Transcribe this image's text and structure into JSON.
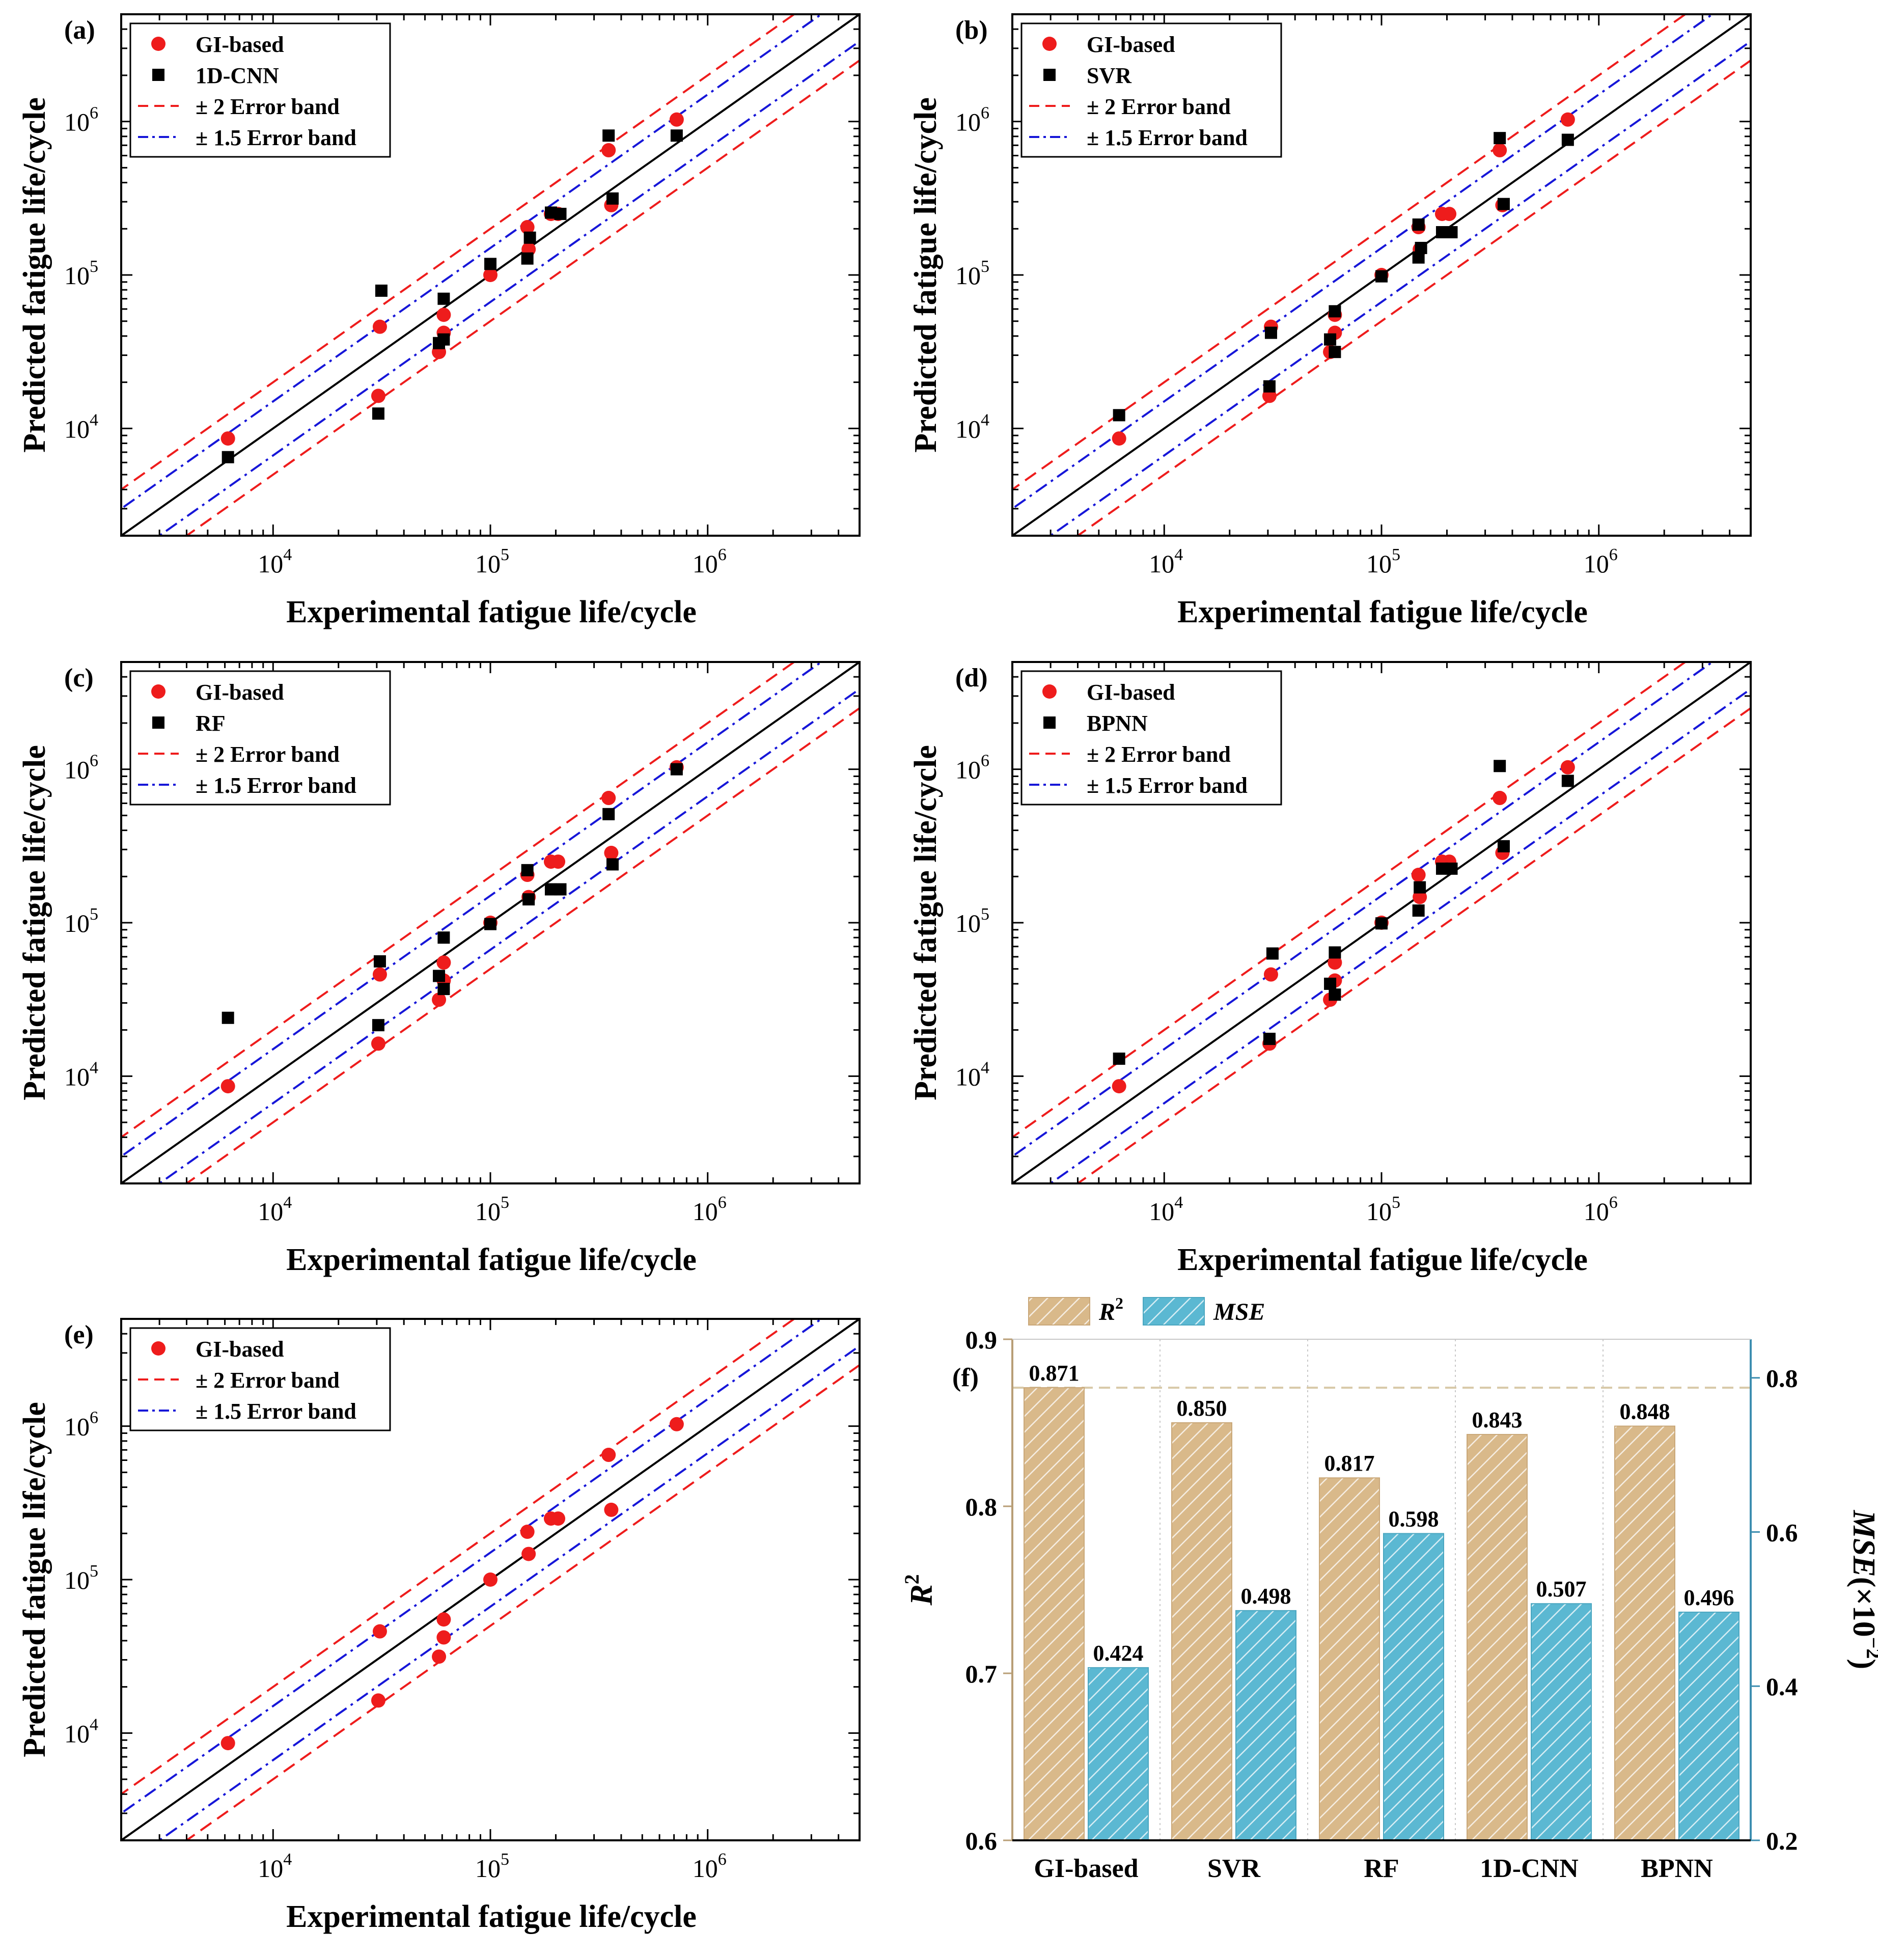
{
  "colors": {
    "ours": "#ee1c1c",
    "baseline": "#000000",
    "band2": "#ee1c1c",
    "band15": "#1616d8",
    "r2_bar": "#d9b98a",
    "mse_bar": "#5bb8d2",
    "mse_axis": "#3d8eb0"
  },
  "chart_data": [
    {
      "type": "scatter",
      "panel_label": "(a)",
      "xlabel": "Experimental fatigue life/cycle",
      "ylabel": "Predicted fatigue life/cycle",
      "xscale": "log",
      "yscale": "log",
      "xlim": [
        2000,
        5000000
      ],
      "ylim": [
        2000,
        5000000
      ],
      "xticks": [
        "10^4",
        "10^5",
        "10^6"
      ],
      "yticks": [
        "10^4",
        "10^5",
        "10^6"
      ],
      "legend": {
        "position": "top-left",
        "entries": [
          "GI-based",
          "1D-CNN",
          "± 2 Error band",
          "± 1.5 Error band"
        ]
      },
      "series": [
        {
          "name": "GI-based",
          "marker": "circle",
          "points": [
            [
              6200,
              8600
            ],
            [
              31000,
              46000
            ],
            [
              30500,
              16300
            ],
            [
              58000,
              31500
            ],
            [
              61000,
              42000
            ],
            [
              61000,
              55000
            ],
            [
              100000,
              100000
            ],
            [
              148000,
              205000
            ],
            [
              150000,
              147000
            ],
            [
              190000,
              250000
            ],
            [
              205000,
              250000
            ],
            [
              350000,
              650000
            ],
            [
              360000,
              285000
            ],
            [
              720000,
              1030000
            ]
          ]
        },
        {
          "name": "1D-CNN",
          "marker": "square",
          "points": [
            [
              6200,
              6500
            ],
            [
              31500,
              79000
            ],
            [
              30500,
              12500
            ],
            [
              58000,
              36000
            ],
            [
              61000,
              38000
            ],
            [
              61000,
              70000
            ],
            [
              100000,
              118000
            ],
            [
              148000,
              128000
            ],
            [
              152000,
              175000
            ],
            [
              190000,
              255000
            ],
            [
              210000,
              250000
            ],
            [
              350000,
              810000
            ],
            [
              365000,
              315000
            ],
            [
              720000,
              810000
            ]
          ]
        }
      ]
    },
    {
      "type": "scatter",
      "panel_label": "(b)",
      "xlabel": "Experimental fatigue life/cycle",
      "ylabel": "Predicted fatigue life/cycle",
      "xscale": "log",
      "yscale": "log",
      "xlim": [
        2000,
        5000000
      ],
      "ylim": [
        2000,
        5000000
      ],
      "xticks": [
        "10^4",
        "10^5",
        "10^6"
      ],
      "yticks": [
        "10^4",
        "10^5",
        "10^6"
      ],
      "legend": {
        "position": "top-left",
        "entries": [
          "GI-based",
          "SVR",
          "± 2 Error band",
          "± 1.5 Error band"
        ]
      },
      "series": [
        {
          "name": "GI-based",
          "marker": "circle",
          "points": [
            [
              6200,
              8600
            ],
            [
              31000,
              46000
            ],
            [
              30500,
              16300
            ],
            [
              58000,
              31500
            ],
            [
              61000,
              42000
            ],
            [
              61000,
              55000
            ],
            [
              100000,
              100000
            ],
            [
              148000,
              205000
            ],
            [
              150000,
              147000
            ],
            [
              190000,
              250000
            ],
            [
              205000,
              250000
            ],
            [
              350000,
              650000
            ],
            [
              360000,
              285000
            ],
            [
              720000,
              1030000
            ]
          ]
        },
        {
          "name": "SVR",
          "marker": "square",
          "points": [
            [
              6200,
              12200
            ],
            [
              31000,
              42000
            ],
            [
              30500,
              18800
            ],
            [
              58000,
              38000
            ],
            [
              61000,
              58000
            ],
            [
              61000,
              31500
            ],
            [
              100000,
              98000
            ],
            [
              148000,
              213000
            ],
            [
              148000,
              130000
            ],
            [
              152000,
              150000
            ],
            [
              190000,
              190000
            ],
            [
              210000,
              190000
            ],
            [
              350000,
              780000
            ],
            [
              365000,
              290000
            ],
            [
              720000,
              760000
            ]
          ]
        }
      ]
    },
    {
      "type": "scatter",
      "panel_label": "(c)",
      "xlabel": "Experimental fatigue life/cycle",
      "ylabel": "Predicted fatigue life/cycle",
      "xscale": "log",
      "yscale": "log",
      "xlim": [
        2000,
        5000000
      ],
      "ylim": [
        2000,
        5000000
      ],
      "xticks": [
        "10^4",
        "10^5",
        "10^6"
      ],
      "yticks": [
        "10^4",
        "10^5",
        "10^6"
      ],
      "legend": {
        "position": "top-left",
        "entries": [
          "GI-based",
          "RF",
          "± 2 Error band",
          "± 1.5 Error band"
        ]
      },
      "series": [
        {
          "name": "GI-based",
          "marker": "circle",
          "points": [
            [
              6200,
              8600
            ],
            [
              31000,
              46000
            ],
            [
              30500,
              16300
            ],
            [
              58000,
              31500
            ],
            [
              61000,
              42000
            ],
            [
              61000,
              55000
            ],
            [
              100000,
              100000
            ],
            [
              148000,
              205000
            ],
            [
              150000,
              147000
            ],
            [
              190000,
              250000
            ],
            [
              205000,
              250000
            ],
            [
              350000,
              650000
            ],
            [
              360000,
              285000
            ],
            [
              720000,
              1030000
            ]
          ]
        },
        {
          "name": "RF",
          "marker": "square",
          "points": [
            [
              6200,
              24000
            ],
            [
              31000,
              56000
            ],
            [
              30500,
              21500
            ],
            [
              58000,
              45000
            ],
            [
              61000,
              37000
            ],
            [
              61000,
              80000
            ],
            [
              100000,
              98000
            ],
            [
              148000,
              220000
            ],
            [
              150000,
              142000
            ],
            [
              190000,
              165000
            ],
            [
              210000,
              165000
            ],
            [
              350000,
              510000
            ],
            [
              365000,
              240000
            ],
            [
              720000,
              1000000
            ]
          ]
        }
      ]
    },
    {
      "type": "scatter",
      "panel_label": "(d)",
      "xlabel": "Experimental fatigue life/cycle",
      "ylabel": "Predicted fatigue life/cycle",
      "xscale": "log",
      "yscale": "log",
      "xlim": [
        2000,
        5000000
      ],
      "ylim": [
        2000,
        5000000
      ],
      "xticks": [
        "10^4",
        "10^5",
        "10^6"
      ],
      "yticks": [
        "10^4",
        "10^5",
        "10^6"
      ],
      "legend": {
        "position": "top-left",
        "entries": [
          "GI-based",
          "BPNN",
          "± 2 Error band",
          "± 1.5 Error band"
        ]
      },
      "series": [
        {
          "name": "GI-based",
          "marker": "circle",
          "points": [
            [
              6200,
              8600
            ],
            [
              31000,
              46000
            ],
            [
              30500,
              16300
            ],
            [
              58000,
              31500
            ],
            [
              61000,
              42000
            ],
            [
              61000,
              55000
            ],
            [
              100000,
              100000
            ],
            [
              148000,
              205000
            ],
            [
              150000,
              147000
            ],
            [
              190000,
              250000
            ],
            [
              205000,
              250000
            ],
            [
              350000,
              650000
            ],
            [
              360000,
              285000
            ],
            [
              720000,
              1030000
            ]
          ]
        },
        {
          "name": "BPNN",
          "marker": "square",
          "points": [
            [
              6200,
              13000
            ],
            [
              31500,
              63000
            ],
            [
              30500,
              17500
            ],
            [
              58000,
              40000
            ],
            [
              61000,
              34000
            ],
            [
              61000,
              64000
            ],
            [
              100000,
              99000
            ],
            [
              148000,
              120000
            ],
            [
              150000,
              170000
            ],
            [
              190000,
              225000
            ],
            [
              210000,
              225000
            ],
            [
              350000,
              1050000
            ],
            [
              365000,
              315000
            ],
            [
              720000,
              840000
            ]
          ]
        }
      ]
    },
    {
      "type": "scatter",
      "panel_label": "(e)",
      "xlabel": "Experimental fatigue life/cycle",
      "ylabel": "Predicted fatigue life/cycle",
      "xscale": "log",
      "yscale": "log",
      "xlim": [
        2000,
        5000000
      ],
      "ylim": [
        2000,
        5000000
      ],
      "xticks": [
        "10^4",
        "10^5",
        "10^6"
      ],
      "yticks": [
        "10^4",
        "10^5",
        "10^6"
      ],
      "legend": {
        "position": "top-left",
        "entries": [
          "GI-based",
          "± 2 Error band",
          "± 1.5 Error band"
        ]
      },
      "series": [
        {
          "name": "GI-based",
          "marker": "circle",
          "points": [
            [
              6200,
              8600
            ],
            [
              31000,
              46000
            ],
            [
              30500,
              16300
            ],
            [
              58000,
              31500
            ],
            [
              61000,
              42000
            ],
            [
              61000,
              55000
            ],
            [
              100000,
              100000
            ],
            [
              148000,
              205000
            ],
            [
              150000,
              147000
            ],
            [
              190000,
              250000
            ],
            [
              205000,
              250000
            ],
            [
              350000,
              650000
            ],
            [
              360000,
              285000
            ],
            [
              720000,
              1030000
            ]
          ]
        }
      ]
    },
    {
      "type": "bar",
      "panel_label": "(f)",
      "categories": [
        "GI-based",
        "SVR",
        "RF",
        "1D-CNN",
        "BPNN"
      ],
      "ylabel_left": "R",
      "ylabel_left_sup": "2",
      "ylabel_right": "MSE",
      "ylabel_right_unit": "(×10",
      "ylabel_right_exp": "−2",
      "ylim_left": [
        0.6,
        0.9
      ],
      "ylim_right": [
        0.2,
        0.85
      ],
      "yticks_left": [
        "0.6",
        "0.7",
        "0.8",
        "0.9"
      ],
      "yticks_right": [
        "0.2",
        "0.4",
        "0.6",
        "0.8"
      ],
      "reference_line": 0.871,
      "legend": {
        "position": "top",
        "entries": [
          "R",
          "MSE"
        ]
      },
      "series": [
        {
          "name": "R2",
          "axis": "left",
          "values": [
            0.871,
            0.85,
            0.817,
            0.843,
            0.848
          ],
          "labels": [
            "0.871",
            "0.850",
            "0.817",
            "0.843",
            "0.848"
          ]
        },
        {
          "name": "MSE",
          "axis": "right",
          "values": [
            0.424,
            0.498,
            0.598,
            0.507,
            0.496
          ],
          "labels": [
            "0.424",
            "0.498",
            "0.598",
            "0.507",
            "0.496"
          ]
        }
      ]
    }
  ]
}
